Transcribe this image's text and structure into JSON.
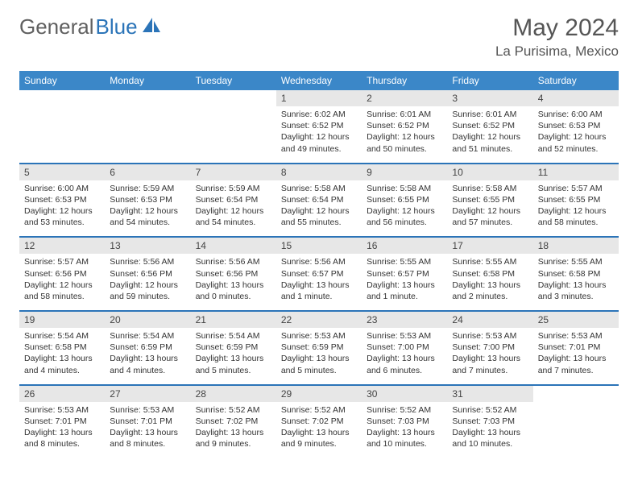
{
  "logo": {
    "text1": "General",
    "text2": "Blue"
  },
  "title": "May 2024",
  "subtitle": "La Purisima, Mexico",
  "colors": {
    "header_bg": "#3b87c8",
    "row_divider": "#2b74b8",
    "daynum_bg": "#e7e7e7",
    "page_bg": "#ffffff",
    "text": "#333333"
  },
  "day_names": [
    "Sunday",
    "Monday",
    "Tuesday",
    "Wednesday",
    "Thursday",
    "Friday",
    "Saturday"
  ],
  "weeks": [
    [
      {
        "n": "",
        "l": [
          "",
          "",
          "",
          ""
        ]
      },
      {
        "n": "",
        "l": [
          "",
          "",
          "",
          ""
        ]
      },
      {
        "n": "",
        "l": [
          "",
          "",
          "",
          ""
        ]
      },
      {
        "n": "1",
        "l": [
          "Sunrise: 6:02 AM",
          "Sunset: 6:52 PM",
          "Daylight: 12 hours",
          "and 49 minutes."
        ]
      },
      {
        "n": "2",
        "l": [
          "Sunrise: 6:01 AM",
          "Sunset: 6:52 PM",
          "Daylight: 12 hours",
          "and 50 minutes."
        ]
      },
      {
        "n": "3",
        "l": [
          "Sunrise: 6:01 AM",
          "Sunset: 6:52 PM",
          "Daylight: 12 hours",
          "and 51 minutes."
        ]
      },
      {
        "n": "4",
        "l": [
          "Sunrise: 6:00 AM",
          "Sunset: 6:53 PM",
          "Daylight: 12 hours",
          "and 52 minutes."
        ]
      }
    ],
    [
      {
        "n": "5",
        "l": [
          "Sunrise: 6:00 AM",
          "Sunset: 6:53 PM",
          "Daylight: 12 hours",
          "and 53 minutes."
        ]
      },
      {
        "n": "6",
        "l": [
          "Sunrise: 5:59 AM",
          "Sunset: 6:53 PM",
          "Daylight: 12 hours",
          "and 54 minutes."
        ]
      },
      {
        "n": "7",
        "l": [
          "Sunrise: 5:59 AM",
          "Sunset: 6:54 PM",
          "Daylight: 12 hours",
          "and 54 minutes."
        ]
      },
      {
        "n": "8",
        "l": [
          "Sunrise: 5:58 AM",
          "Sunset: 6:54 PM",
          "Daylight: 12 hours",
          "and 55 minutes."
        ]
      },
      {
        "n": "9",
        "l": [
          "Sunrise: 5:58 AM",
          "Sunset: 6:55 PM",
          "Daylight: 12 hours",
          "and 56 minutes."
        ]
      },
      {
        "n": "10",
        "l": [
          "Sunrise: 5:58 AM",
          "Sunset: 6:55 PM",
          "Daylight: 12 hours",
          "and 57 minutes."
        ]
      },
      {
        "n": "11",
        "l": [
          "Sunrise: 5:57 AM",
          "Sunset: 6:55 PM",
          "Daylight: 12 hours",
          "and 58 minutes."
        ]
      }
    ],
    [
      {
        "n": "12",
        "l": [
          "Sunrise: 5:57 AM",
          "Sunset: 6:56 PM",
          "Daylight: 12 hours",
          "and 58 minutes."
        ]
      },
      {
        "n": "13",
        "l": [
          "Sunrise: 5:56 AM",
          "Sunset: 6:56 PM",
          "Daylight: 12 hours",
          "and 59 minutes."
        ]
      },
      {
        "n": "14",
        "l": [
          "Sunrise: 5:56 AM",
          "Sunset: 6:56 PM",
          "Daylight: 13 hours",
          "and 0 minutes."
        ]
      },
      {
        "n": "15",
        "l": [
          "Sunrise: 5:56 AM",
          "Sunset: 6:57 PM",
          "Daylight: 13 hours",
          "and 1 minute."
        ]
      },
      {
        "n": "16",
        "l": [
          "Sunrise: 5:55 AM",
          "Sunset: 6:57 PM",
          "Daylight: 13 hours",
          "and 1 minute."
        ]
      },
      {
        "n": "17",
        "l": [
          "Sunrise: 5:55 AM",
          "Sunset: 6:58 PM",
          "Daylight: 13 hours",
          "and 2 minutes."
        ]
      },
      {
        "n": "18",
        "l": [
          "Sunrise: 5:55 AM",
          "Sunset: 6:58 PM",
          "Daylight: 13 hours",
          "and 3 minutes."
        ]
      }
    ],
    [
      {
        "n": "19",
        "l": [
          "Sunrise: 5:54 AM",
          "Sunset: 6:58 PM",
          "Daylight: 13 hours",
          "and 4 minutes."
        ]
      },
      {
        "n": "20",
        "l": [
          "Sunrise: 5:54 AM",
          "Sunset: 6:59 PM",
          "Daylight: 13 hours",
          "and 4 minutes."
        ]
      },
      {
        "n": "21",
        "l": [
          "Sunrise: 5:54 AM",
          "Sunset: 6:59 PM",
          "Daylight: 13 hours",
          "and 5 minutes."
        ]
      },
      {
        "n": "22",
        "l": [
          "Sunrise: 5:53 AM",
          "Sunset: 6:59 PM",
          "Daylight: 13 hours",
          "and 5 minutes."
        ]
      },
      {
        "n": "23",
        "l": [
          "Sunrise: 5:53 AM",
          "Sunset: 7:00 PM",
          "Daylight: 13 hours",
          "and 6 minutes."
        ]
      },
      {
        "n": "24",
        "l": [
          "Sunrise: 5:53 AM",
          "Sunset: 7:00 PM",
          "Daylight: 13 hours",
          "and 7 minutes."
        ]
      },
      {
        "n": "25",
        "l": [
          "Sunrise: 5:53 AM",
          "Sunset: 7:01 PM",
          "Daylight: 13 hours",
          "and 7 minutes."
        ]
      }
    ],
    [
      {
        "n": "26",
        "l": [
          "Sunrise: 5:53 AM",
          "Sunset: 7:01 PM",
          "Daylight: 13 hours",
          "and 8 minutes."
        ]
      },
      {
        "n": "27",
        "l": [
          "Sunrise: 5:53 AM",
          "Sunset: 7:01 PM",
          "Daylight: 13 hours",
          "and 8 minutes."
        ]
      },
      {
        "n": "28",
        "l": [
          "Sunrise: 5:52 AM",
          "Sunset: 7:02 PM",
          "Daylight: 13 hours",
          "and 9 minutes."
        ]
      },
      {
        "n": "29",
        "l": [
          "Sunrise: 5:52 AM",
          "Sunset: 7:02 PM",
          "Daylight: 13 hours",
          "and 9 minutes."
        ]
      },
      {
        "n": "30",
        "l": [
          "Sunrise: 5:52 AM",
          "Sunset: 7:03 PM",
          "Daylight: 13 hours",
          "and 10 minutes."
        ]
      },
      {
        "n": "31",
        "l": [
          "Sunrise: 5:52 AM",
          "Sunset: 7:03 PM",
          "Daylight: 13 hours",
          "and 10 minutes."
        ]
      },
      {
        "n": "",
        "l": [
          "",
          "",
          "",
          ""
        ]
      }
    ]
  ]
}
